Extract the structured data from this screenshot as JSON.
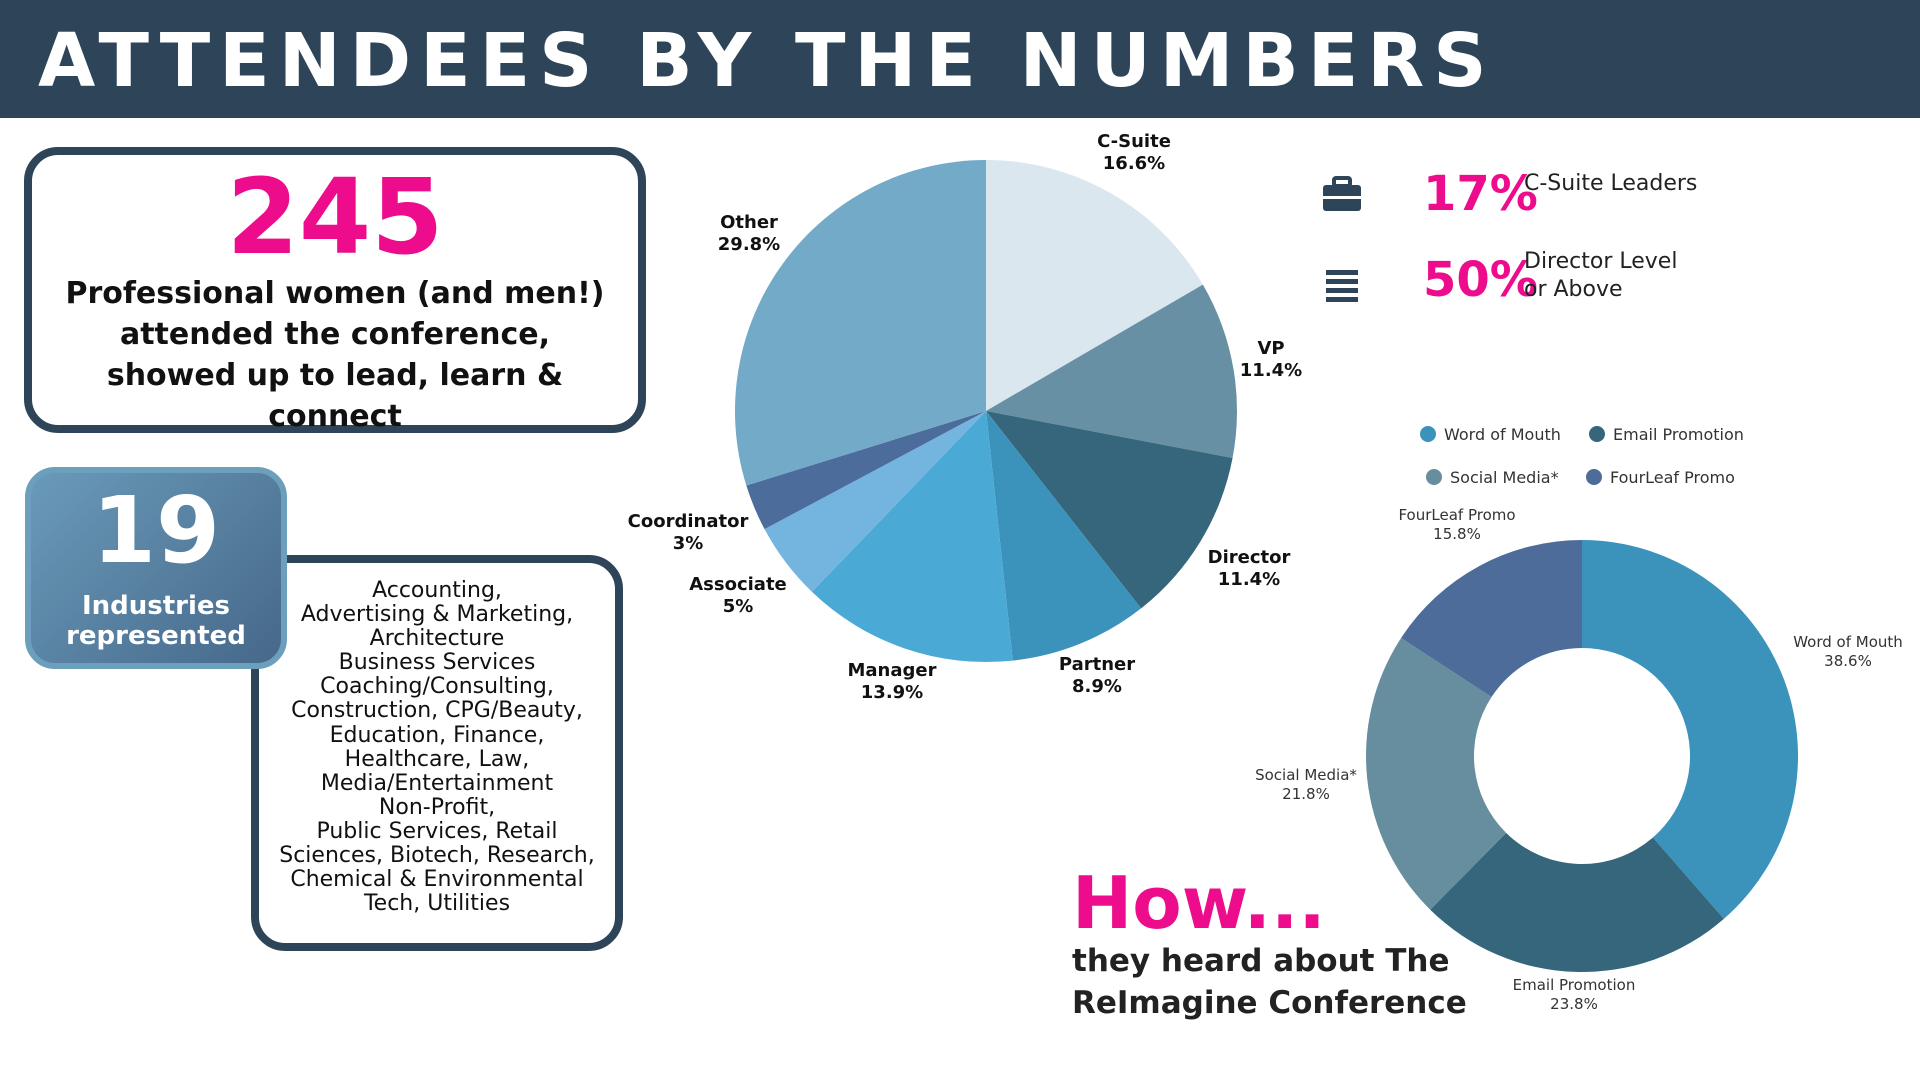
{
  "header": {
    "title": "ATTENDEES BY THE NUMBERS"
  },
  "attendance": {
    "number": "245",
    "description": "Professional women (and men!) attended the conference, showed up to lead, learn & connect"
  },
  "industries": {
    "number": "19",
    "label_line1": "Industries",
    "label_line2": "represented",
    "list": [
      "Accounting,",
      "Advertising & Marketing,",
      "Architecture",
      "Business Services",
      "Coaching/Consulting,",
      "Construction, CPG/Beauty,",
      "Education, Finance,",
      "Healthcare, Law,",
      "Media/Entertainment",
      "Non-Profit,",
      "Public Services, Retail",
      "Sciences, Biotech, Research,",
      "Chemical & Environmental",
      "Tech, Utilities"
    ]
  },
  "kpis": [
    {
      "value": "17%",
      "text_line1": "C-Suite Leaders",
      "text_line2": "",
      "icon": "briefcase-icon"
    },
    {
      "value": "50%",
      "text_line1": "Director Level",
      "text_line2": "or Above",
      "icon": "list-icon"
    }
  ],
  "how": {
    "title": "How...",
    "subtitle": "they heard about The ReImagine Conference"
  },
  "chart_data": [
    {
      "type": "pie",
      "categories": [
        "C-Suite",
        "VP",
        "Director",
        "Partner",
        "Manager",
        "Associate",
        "Coordinator",
        "Other"
      ],
      "values": [
        16.6,
        11.4,
        11.4,
        8.9,
        13.9,
        5,
        3,
        29.8
      ],
      "labels": [
        "16.6%",
        "11.4%",
        "11.4%",
        "8.9%",
        "13.9%",
        "5%",
        "3%",
        "29.8%"
      ],
      "colors": [
        "#dae7ef",
        "#6890a4",
        "#35667b",
        "#3b93bb",
        "#4aa9d5",
        "#74b5e0",
        "#4c6c9c",
        "#73aac7"
      ]
    },
    {
      "type": "donut",
      "categories": [
        "Word of Mouth",
        "Email Promotion",
        "Social Media*",
        "FourLeaf Promo"
      ],
      "values": [
        38.6,
        23.8,
        21.8,
        15.8
      ],
      "labels": [
        "38.6%",
        "23.8%",
        "21.8%",
        "15.8%"
      ],
      "colors": [
        "#3b93bb",
        "#35667b",
        "#678e9f",
        "#4e6c99"
      ],
      "legend": [
        "Word of Mouth",
        "Email Promotion",
        "Social Media*",
        "FourLeaf Promo"
      ],
      "legend_position": "top"
    }
  ]
}
